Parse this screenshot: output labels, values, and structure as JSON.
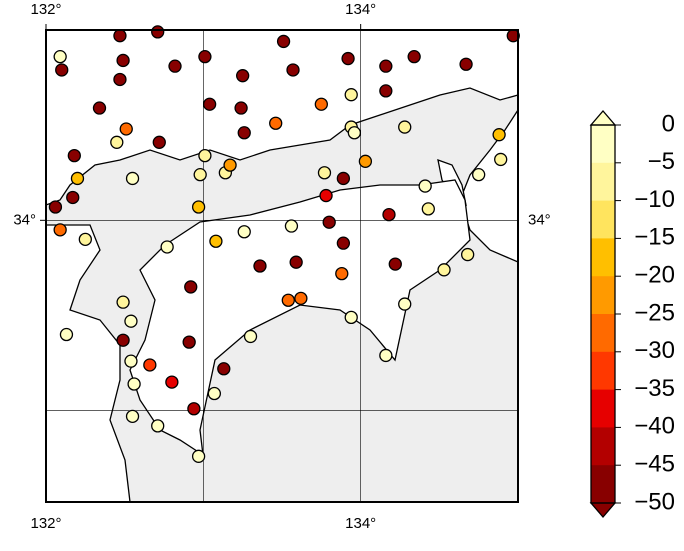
{
  "chart_data": {
    "type": "scatter",
    "x": [
      132.09,
      132.1,
      132.47,
      132.71,
      132.49,
      132.47,
      132.34,
      132.82,
      133.01,
      133.25,
      133.51,
      133.57,
      133.92,
      134.16,
      134.34,
      134.67,
      134.97,
      133.04,
      133.24,
      133.75,
      133.94,
      134.16,
      132.51,
      132.45,
      132.72,
      133.26,
      133.46,
      133.94,
      134.28,
      133.96,
      134.03,
      132.18,
      132.2,
      132.55,
      132.17,
      132.06,
      133.01,
      132.98,
      133.14,
      133.17,
      133.77,
      133.89,
      134.41,
      134.88,
      134.89,
      134.75,
      132.97,
      133.78,
      133.8,
      134.18,
      134.43,
      132.09,
      132.25,
      132.77,
      133.08,
      133.26,
      133.56,
      133.89,
      133.36,
      133.59,
      133.88,
      134.22,
      134.68,
      134.53,
      132.92,
      132.49,
      133.54,
      133.62,
      134.28,
      132.54,
      132.13,
      133.94,
      133.3,
      132.49,
      132.91,
      134.16,
      132.54,
      132.66,
      133.13,
      132.8,
      132.56,
      133.07,
      132.94,
      132.55,
      132.71,
      132.97
    ],
    "y": [
      34.86,
      34.79,
      34.97,
      34.99,
      34.84,
      34.74,
      34.59,
      34.81,
      34.86,
      34.76,
      34.94,
      34.79,
      34.85,
      34.81,
      34.86,
      34.82,
      34.97,
      34.61,
      34.59,
      34.61,
      34.66,
      34.68,
      34.48,
      34.41,
      34.41,
      34.46,
      34.51,
      34.49,
      34.49,
      34.46,
      34.31,
      34.34,
      34.22,
      34.22,
      34.12,
      34.07,
      34.34,
      34.24,
      34.25,
      34.29,
      34.25,
      34.22,
      34.18,
      34.45,
      34.32,
      34.24,
      34.07,
      34.13,
      33.99,
      34.03,
      34.06,
      33.95,
      33.9,
      33.86,
      33.89,
      33.94,
      33.97,
      33.88,
      33.76,
      33.78,
      33.72,
      33.77,
      33.82,
      33.74,
      33.65,
      33.57,
      33.58,
      33.59,
      33.56,
      33.47,
      33.4,
      33.49,
      33.39,
      33.37,
      33.36,
      33.29,
      33.26,
      33.24,
      33.22,
      33.15,
      33.14,
      33.09,
      33.01,
      32.97,
      32.92,
      32.76
    ],
    "values": [
      -2,
      -47,
      -47,
      -47,
      -47,
      -47,
      -47,
      -47,
      -47,
      -47,
      -47,
      -47,
      -47,
      -47,
      -47,
      -47,
      -47,
      -47,
      -47,
      -25,
      -7,
      -47,
      -25,
      -7,
      -47,
      -47,
      -28,
      -5,
      -7,
      -3,
      -22,
      -47,
      -17,
      -3,
      -45,
      -47,
      -7,
      -5,
      -5,
      -22,
      -5,
      -47,
      -3,
      -17,
      -5,
      -3,
      -17,
      -37,
      -45,
      -40,
      -5,
      -28,
      -5,
      -3,
      -17,
      -3,
      -3,
      -47,
      -45,
      -47,
      -28,
      -47,
      -5,
      -5,
      -47,
      -5,
      -25,
      -28,
      -3,
      -3,
      -3,
      -3,
      -3,
      -47,
      -47,
      -3,
      -3,
      -30,
      -47,
      -37,
      -3,
      -3,
      -40,
      -3,
      -3,
      -3
    ],
    "xlim": [
      132,
      135
    ],
    "ylim": [
      32.52,
      35
    ],
    "xticks": [
      {
        "value": 132,
        "label": "132°"
      },
      {
        "value": 134,
        "label": "134°"
      }
    ],
    "yticks": [
      {
        "value": 34,
        "label": "34°"
      }
    ],
    "xgrid": [
      133,
      134
    ],
    "ygrid": [
      33,
      34
    ],
    "colorbar": {
      "clim": [
        -50,
        0
      ],
      "ticks": [
        0,
        {
          "value": -5,
          "label": "−5"
        },
        {
          "value": -10,
          "label": "−10"
        },
        {
          "value": -15,
          "label": "−15"
        },
        {
          "value": -20,
          "label": "−20"
        },
        {
          "value": -25,
          "label": "−25"
        },
        {
          "value": -30,
          "label": "−30"
        },
        {
          "value": -35,
          "label": "−35"
        },
        {
          "value": -40,
          "label": "−40"
        },
        {
          "value": -45,
          "label": "−45"
        },
        {
          "value": -50,
          "label": "−50"
        }
      ],
      "colors": [
        "#ffffc4",
        "#fff59c",
        "#ffe45e",
        "#ffbf00",
        "#ff9a00",
        "#ff6a00",
        "#ff3800",
        "#e60000",
        "#b30000",
        "#880000"
      ]
    }
  }
}
